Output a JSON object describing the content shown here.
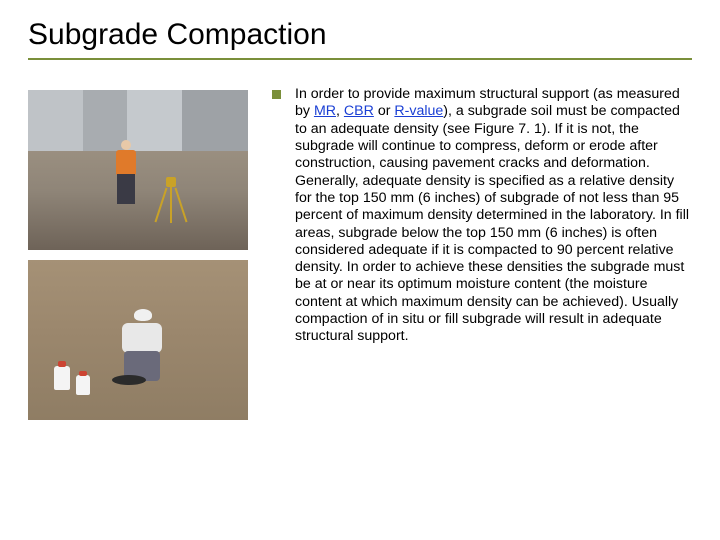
{
  "title": "Subgrade Compaction",
  "bullet_marker_color": "#7a8f3a",
  "underline_color": "#7a8f3a",
  "link_color": "#1a3fd4",
  "body": {
    "segments": [
      {
        "t": "In order to provide maximum structural support (as measured by "
      },
      {
        "t": "MR",
        "link": true
      },
      {
        "t": ", "
      },
      {
        "t": "CBR",
        "link": true
      },
      {
        "t": " or "
      },
      {
        "t": "R-value",
        "link": true
      },
      {
        "t": "), a subgrade soil must be compacted to an adequate density (see Figure 7. 1).  If it is not, the subgrade will continue to compress, deform or erode after construction, causing pavement cracks and deformation.  Generally, adequate density is specified as a relative density for the top 150 mm (6 inches) of subgrade of not less than 95 percent of maximum density determined in the laboratory.  In fill areas, subgrade below the top 150 mm (6 inches) is often considered adequate if it is compacted to 90 percent relative density.  In order to achieve these densities the subgrade must be at or near its optimum moisture content (the moisture content at which maximum density can be achieved).  Usually compaction of in situ or fill subgrade will result in adequate structural support."
      }
    ]
  },
  "images": {
    "top": {
      "alt": "Worker with survey tripod on roadbed"
    },
    "bottom": {
      "alt": "Worker performing soil density test on compacted subgrade"
    }
  }
}
